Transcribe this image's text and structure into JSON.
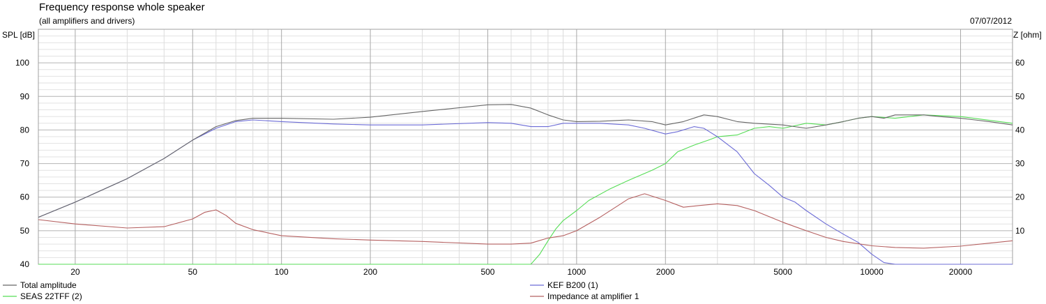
{
  "header": {
    "title": "Frequency response whole speaker",
    "subtitle": "(all amplifiers and drivers)",
    "date": "07/07/2012"
  },
  "chart_data": {
    "type": "line",
    "title": "Frequency response whole speaker",
    "subtitle": "(all amplifiers and drivers)",
    "ylabel": "SPL [dB]",
    "y2label": "Z [ohm]",
    "x_scale": "log",
    "xlim": [
      15,
      30000
    ],
    "ylim": [
      40,
      110
    ],
    "y2lim": [
      0,
      70
    ],
    "x_ticks": [
      {
        "value": 20,
        "label": "20"
      },
      {
        "value": 50,
        "label": "50"
      },
      {
        "value": 100,
        "label": "100"
      },
      {
        "value": 200,
        "label": "200"
      },
      {
        "value": 500,
        "label": "500"
      },
      {
        "value": 1000,
        "label": "1000"
      },
      {
        "value": 2000,
        "label": "2000"
      },
      {
        "value": 5000,
        "label": "5000"
      },
      {
        "value": 10000,
        "label": "10000"
      },
      {
        "value": 20000,
        "label": "20000"
      }
    ],
    "y_ticks": [
      40,
      50,
      60,
      70,
      80,
      90,
      100
    ],
    "y2_ticks": [
      10,
      20,
      30,
      40,
      50,
      60
    ],
    "grid": true,
    "legend_position": "bottom",
    "series": [
      {
        "name": "Total amplitude",
        "color": "#666666",
        "axis": "left",
        "x": [
          15,
          20,
          30,
          40,
          50,
          60,
          70,
          80,
          100,
          150,
          200,
          300,
          500,
          600,
          700,
          800,
          900,
          1000,
          1200,
          1500,
          1800,
          2000,
          2300,
          2700,
          3000,
          3500,
          4000,
          5000,
          6000,
          7000,
          8000,
          9000,
          10000,
          11000,
          12000,
          15000,
          17000,
          20000,
          25000,
          30000
        ],
        "y": [
          54,
          58.5,
          65.5,
          71.5,
          77,
          81,
          82.8,
          83.5,
          83.5,
          83.2,
          83.8,
          85.5,
          87.5,
          87.6,
          86.5,
          84.5,
          83,
          82.5,
          82.6,
          83,
          82.5,
          81.5,
          82.5,
          84.5,
          84,
          82.5,
          82,
          81.5,
          80.5,
          81.5,
          82.5,
          83.5,
          84,
          83.5,
          84.5,
          84.5,
          84,
          83.5,
          82.5,
          81.5
        ]
      },
      {
        "name": "KEF B200 (1)",
        "color": "#6b6bd6",
        "axis": "left",
        "x": [
          15,
          20,
          30,
          40,
          50,
          60,
          70,
          80,
          100,
          150,
          200,
          300,
          500,
          600,
          700,
          800,
          900,
          1000,
          1200,
          1500,
          1700,
          2000,
          2200,
          2500,
          2700,
          3000,
          3500,
          4000,
          4500,
          5000,
          5500,
          6000,
          7000,
          8000,
          9000,
          10000,
          11000,
          12000,
          15000,
          20000,
          30000
        ],
        "y": [
          54,
          58.5,
          65.5,
          71.5,
          77,
          80.5,
          82.5,
          83,
          82.5,
          81.8,
          81.5,
          81.5,
          82.2,
          82,
          81,
          81,
          82,
          82,
          82,
          81.5,
          80.5,
          78.8,
          79.5,
          81,
          80.5,
          78,
          73.5,
          67,
          63.5,
          60,
          58.5,
          56,
          52,
          49,
          46.5,
          43,
          40.5,
          40,
          40,
          40,
          40
        ]
      },
      {
        "name": "SEAS 22TFF (2)",
        "color": "#55dd55",
        "axis": "left",
        "x": [
          15,
          500,
          700,
          750,
          800,
          850,
          900,
          1000,
          1100,
          1300,
          1500,
          1800,
          2000,
          2200,
          2500,
          2800,
          3000,
          3500,
          4000,
          4500,
          5000,
          6000,
          7000,
          8000,
          9000,
          10000,
          12000,
          15000,
          20000,
          30000
        ],
        "y": [
          40,
          40,
          40,
          43,
          47,
          50.5,
          53,
          56,
          59,
          62.5,
          65,
          68,
          70,
          73.5,
          75.5,
          77,
          78,
          78.5,
          80.5,
          81,
          80.5,
          82,
          81.5,
          82.5,
          83.5,
          84,
          83.5,
          84.5,
          84,
          82
        ]
      },
      {
        "name": "Impedance at amplifier 1",
        "color": "#b56060",
        "axis": "right",
        "x": [
          15,
          20,
          30,
          40,
          50,
          55,
          60,
          65,
          70,
          80,
          100,
          150,
          200,
          300,
          500,
          600,
          700,
          800,
          900,
          1000,
          1200,
          1500,
          1700,
          2000,
          2300,
          2600,
          3000,
          3500,
          4000,
          5000,
          6000,
          7000,
          8000,
          10000,
          12000,
          15000,
          20000,
          30000
        ],
        "y": [
          13.3,
          12,
          10.8,
          11.2,
          13.5,
          15.5,
          16.2,
          14.5,
          12.2,
          10.3,
          8.5,
          7.6,
          7.2,
          6.8,
          6,
          6,
          6.3,
          7.8,
          8.5,
          10,
          14,
          19.5,
          21,
          19,
          17,
          17.5,
          18,
          17.5,
          16,
          12.5,
          10,
          8,
          6.8,
          5.5,
          5,
          4.8,
          5.4,
          7
        ]
      }
    ]
  },
  "legend": [
    {
      "label": "Total amplitude",
      "color": "#666666"
    },
    {
      "label": "SEAS 22TFF (2)",
      "color": "#55dd55"
    },
    {
      "label": "KEF B200 (1)",
      "color": "#6b6bd6"
    },
    {
      "label": "Impedance at amplifier 1",
      "color": "#b56060"
    }
  ]
}
